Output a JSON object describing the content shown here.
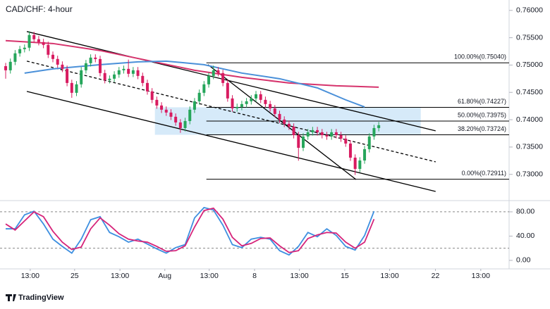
{
  "chart_data": [
    {
      "type": "candlestick",
      "title": "CAD/CHF: 4-hour",
      "up_color": "#26a65b",
      "down_color": "#d81b60",
      "open": [
        0.7498,
        0.74904,
        0.75059,
        0.75214,
        0.75291,
        0.75317,
        0.75549,
        0.75472,
        0.7542,
        0.75368,
        0.75188,
        0.75111,
        0.75007,
        0.7493,
        0.74672,
        0.74492,
        0.74647,
        0.74904,
        0.75033,
        0.75136,
        0.7511,
        0.74853,
        0.74724,
        0.7475,
        0.74827,
        0.74904,
        0.7493,
        0.7484,
        0.74904,
        0.74801,
        0.74672,
        0.74518,
        0.74363,
        0.7426,
        0.74183,
        0.74131,
        0.74054,
        0.7395,
        0.73847,
        0.73976,
        0.74183,
        0.74337,
        0.74492,
        0.74647,
        0.74801,
        0.74904,
        0.74853,
        0.74672,
        0.74389,
        0.74208,
        0.74234,
        0.74286,
        0.74337,
        0.74389,
        0.74466,
        0.74363,
        0.74286,
        0.74208,
        0.74105,
        0.74002,
        0.73925,
        0.73873,
        0.73718,
        0.73486,
        0.73693,
        0.7377,
        0.73809,
        0.7377,
        0.73718,
        0.73693,
        0.7377,
        0.73718,
        0.73654,
        0.73564,
        0.73306,
        0.731,
        0.73254,
        0.73461,
        0.73693,
        0.73847
      ],
      "high": [
        0.7504,
        0.75119,
        0.75274,
        0.75351,
        0.75377,
        0.7562,
        0.75609,
        0.75532,
        0.7548,
        0.75428,
        0.75248,
        0.75171,
        0.75067,
        0.7499,
        0.74732,
        0.74707,
        0.74964,
        0.75093,
        0.75196,
        0.75196,
        0.7517,
        0.74913,
        0.7481,
        0.74887,
        0.74964,
        0.7499,
        0.751,
        0.74964,
        0.74964,
        0.74861,
        0.74732,
        0.74578,
        0.74423,
        0.7432,
        0.74243,
        0.74191,
        0.74114,
        0.7401,
        0.74036,
        0.74243,
        0.74397,
        0.74552,
        0.74707,
        0.74861,
        0.7499,
        0.74964,
        0.74913,
        0.74732,
        0.74449,
        0.74294,
        0.74346,
        0.74397,
        0.74449,
        0.74526,
        0.74526,
        0.74423,
        0.74346,
        0.74268,
        0.74165,
        0.74062,
        0.73985,
        0.73933,
        0.73778,
        0.73753,
        0.7383,
        0.73869,
        0.73869,
        0.7383,
        0.73778,
        0.7383,
        0.7383,
        0.73778,
        0.73714,
        0.73624,
        0.73366,
        0.73314,
        0.73521,
        0.73753,
        0.73907,
        0.73959
      ],
      "low": [
        0.7475,
        0.74844,
        0.74999,
        0.75154,
        0.75231,
        0.75257,
        0.75412,
        0.7536,
        0.75308,
        0.75128,
        0.75051,
        0.74947,
        0.7487,
        0.74612,
        0.744,
        0.74432,
        0.74587,
        0.74844,
        0.74973,
        0.7505,
        0.74793,
        0.74664,
        0.74664,
        0.7469,
        0.74767,
        0.74844,
        0.7478,
        0.7478,
        0.74741,
        0.74612,
        0.74458,
        0.74303,
        0.742,
        0.74123,
        0.74071,
        0.73994,
        0.7389,
        0.7376,
        0.73787,
        0.73916,
        0.74123,
        0.74277,
        0.74432,
        0.74587,
        0.74741,
        0.74793,
        0.74612,
        0.74329,
        0.74148,
        0.74148,
        0.74174,
        0.74226,
        0.74277,
        0.74329,
        0.74303,
        0.74226,
        0.74148,
        0.74045,
        0.73942,
        0.73865,
        0.73813,
        0.73658,
        0.7325,
        0.73426,
        0.73633,
        0.7371,
        0.7371,
        0.73658,
        0.73633,
        0.73633,
        0.73658,
        0.73594,
        0.73504,
        0.73246,
        0.7299,
        0.7304,
        0.73194,
        0.73401,
        0.73633,
        0.73787
      ],
      "close": [
        0.74904,
        0.75059,
        0.75214,
        0.75291,
        0.75317,
        0.75549,
        0.75472,
        0.7542,
        0.75368,
        0.75188,
        0.75111,
        0.75007,
        0.7493,
        0.74672,
        0.74492,
        0.74647,
        0.74904,
        0.75033,
        0.75136,
        0.7511,
        0.74853,
        0.74724,
        0.7475,
        0.74827,
        0.74904,
        0.7493,
        0.7484,
        0.74904,
        0.74801,
        0.74672,
        0.74518,
        0.74363,
        0.7426,
        0.74183,
        0.74131,
        0.74054,
        0.7395,
        0.73847,
        0.73976,
        0.74183,
        0.74337,
        0.74492,
        0.74647,
        0.74801,
        0.74904,
        0.74853,
        0.74672,
        0.74389,
        0.74208,
        0.74234,
        0.74286,
        0.74337,
        0.74389,
        0.74466,
        0.74363,
        0.74286,
        0.74208,
        0.74105,
        0.74002,
        0.73925,
        0.73873,
        0.73718,
        0.73486,
        0.73693,
        0.7377,
        0.73809,
        0.7377,
        0.73718,
        0.73693,
        0.7377,
        0.73718,
        0.73654,
        0.73564,
        0.73306,
        0.731,
        0.73254,
        0.73461,
        0.73693,
        0.73847,
        0.73899
      ],
      "lines": [
        {
          "color": "#d6336c",
          "x": [
            0,
            10,
            20,
            30,
            40,
            50,
            60,
            70,
            79
          ],
          "values": [
            0.75446,
            0.75394,
            0.75265,
            0.75085,
            0.74904,
            0.74775,
            0.74672,
            0.74621,
            0.74595
          ]
        },
        {
          "color": "#4a90d9",
          "x": [
            4,
            10,
            20,
            28,
            34,
            42,
            50,
            58,
            66,
            72,
            76
          ],
          "values": [
            0.74853,
            0.7493,
            0.75007,
            0.75059,
            0.75072,
            0.75007,
            0.74853,
            0.7475,
            0.74582,
            0.74363,
            0.74234
          ]
        }
      ],
      "trendlines": [
        {
          "x": [
            4.48,
            91.04
          ],
          "values": [
            0.75613,
            0.73796
          ],
          "dashed": false
        },
        {
          "x": [
            4.48,
            91.04
          ],
          "values": [
            0.74518,
            0.72687
          ],
          "dashed": false
        },
        {
          "x": [
            4.48,
            91.04
          ],
          "values": [
            0.75072,
            0.73229
          ],
          "dashed": true
        },
        {
          "x": [
            42.84,
            74.18
          ],
          "values": [
            0.75007,
            0.72906
          ],
          "dashed": false
        }
      ],
      "fib_start": 42.5,
      "fib_levels": [
        {
          "value": 0.7504,
          "label": "100.00%(0.75040)"
        },
        {
          "value": 0.74227,
          "label": "61.80%(0.74227)"
        },
        {
          "value": 0.73975,
          "label": "50.00%(0.73975)"
        },
        {
          "value": 0.73724,
          "label": "38.20%(0.73724)"
        },
        {
          "value": 0.72911,
          "label": "0.00%(0.72911)"
        }
      ],
      "fib_zone": {
        "x": [
          31.6,
          87.9
        ],
        "color": "#cfe6f8"
      },
      "xlim": [
        -1.2,
        106.6
      ],
      "ylim": [
        0.7252,
        0.7619
      ],
      "yticks": [
        {
          "value": 0.76,
          "label": "0.76000"
        },
        {
          "value": 0.755,
          "label": "0.75500"
        },
        {
          "value": 0.75,
          "label": "0.75000"
        },
        {
          "value": 0.745,
          "label": "0.74500"
        },
        {
          "value": 0.74,
          "label": "0.74000"
        },
        {
          "value": 0.735,
          "label": "0.73500"
        },
        {
          "value": 0.73,
          "label": "0.73000"
        }
      ]
    },
    {
      "type": "line",
      "x": [
        0,
        2,
        4,
        6,
        8,
        10,
        12,
        14,
        16,
        18,
        20,
        22,
        24,
        26,
        28,
        30,
        32,
        34,
        36,
        38,
        40,
        42,
        44,
        46,
        48,
        50,
        52,
        54,
        56,
        58,
        60,
        62,
        64,
        66,
        68,
        70,
        72,
        74,
        76,
        78
      ],
      "series": [
        {
          "color": "#3d8fe0",
          "values": [
            52,
            52,
            75,
            81,
            60,
            35,
            23,
            12,
            35,
            67,
            72,
            46,
            39,
            30,
            35,
            27,
            19,
            12,
            21,
            26,
            70,
            87,
            83,
            58,
            26,
            21,
            35,
            38,
            35,
            16,
            9,
            23,
            46,
            39,
            52,
            41,
            23,
            17,
            41,
            81
          ]
        },
        {
          "color": "#d6247a",
          "values": [
            60,
            50,
            65,
            80,
            72,
            48,
            30,
            18,
            22,
            52,
            70,
            58,
            44,
            35,
            32,
            30,
            23,
            15,
            16,
            24,
            55,
            82,
            86,
            68,
            38,
            24,
            28,
            36,
            37,
            24,
            13,
            16,
            36,
            42,
            46,
            45,
            30,
            20,
            30,
            68
          ]
        }
      ],
      "levels": [
        80,
        20
      ],
      "xlim": [
        -1.2,
        106.6
      ],
      "ylim": [
        -14,
        95
      ],
      "yticks": [
        {
          "value": 80,
          "label": "80.00"
        },
        {
          "value": 40,
          "label": "40.00"
        },
        {
          "value": 0,
          "label": "0.00"
        }
      ],
      "xticks": [
        {
          "value": 5.2,
          "label": "13:00"
        },
        {
          "value": 14.6,
          "label": "25"
        },
        {
          "value": 24.2,
          "label": "13:00"
        },
        {
          "value": 33.7,
          "label": "Aug"
        },
        {
          "value": 43.1,
          "label": "13:00"
        },
        {
          "value": 52.7,
          "label": "8"
        },
        {
          "value": 62.2,
          "label": "13:00"
        },
        {
          "value": 71.8,
          "label": "15"
        },
        {
          "value": 81.3,
          "label": "13:00"
        },
        {
          "value": 91,
          "label": "22"
        },
        {
          "value": 100.6,
          "label": "13:00"
        }
      ]
    }
  ],
  "branding": "TradingView"
}
